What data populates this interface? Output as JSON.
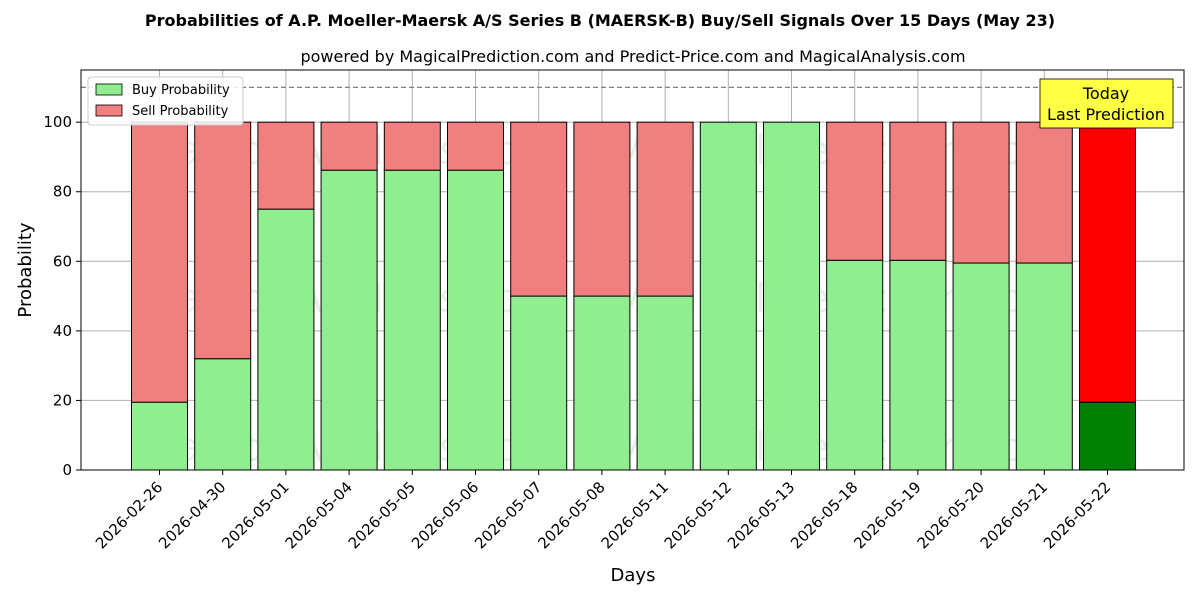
{
  "chart_data": {
    "type": "bar",
    "stacked": true,
    "title": "Probabilities of A.P. Moeller-Maersk A/S Series B (MAERSK-B) Buy/Sell Signals Over 15 Days (May 23)",
    "subtitle": "powered by MagicalPrediction.com and Predict-Price.com and MagicalAnalysis.com",
    "xlabel": "Days",
    "ylabel": "Probability",
    "ylim": [
      0,
      115
    ],
    "yticks": [
      0,
      20,
      40,
      60,
      80,
      100
    ],
    "grid": true,
    "legend_position": "top-left",
    "reference_line": 110,
    "categories": [
      "2026-02-26",
      "2026-04-30",
      "2026-05-01",
      "2026-05-04",
      "2026-05-05",
      "2026-05-06",
      "2026-05-07",
      "2026-05-08",
      "2026-05-11",
      "2026-05-12",
      "2026-05-13",
      "2026-05-18",
      "2026-05-19",
      "2026-05-20",
      "2026-05-21",
      "2026-05-22"
    ],
    "series": [
      {
        "name": "Buy Probability",
        "values": [
          19.5,
          32,
          75,
          86.2,
          86.2,
          86.2,
          50,
          50,
          50,
          100,
          100,
          60.3,
          60.3,
          59.5,
          59.5,
          19.5
        ]
      },
      {
        "name": "Sell Probability",
        "values": [
          80.5,
          68,
          25,
          13.8,
          13.8,
          13.8,
          50,
          50,
          50,
          0,
          0,
          39.7,
          39.7,
          40.5,
          40.5,
          80.5
        ]
      }
    ],
    "annotation": {
      "lines": [
        "Today",
        "Last Prediction"
      ]
    },
    "watermarks": [
      "MagicalAnalysis.com",
      "MagicalPrediction.com"
    ]
  },
  "colors": {
    "buy": "#90ee90",
    "sell": "#f08080",
    "buy_last": "#008000",
    "sell_last": "#ff0000",
    "annotation_bg": "#ffff44",
    "reference_line": "#808080"
  }
}
